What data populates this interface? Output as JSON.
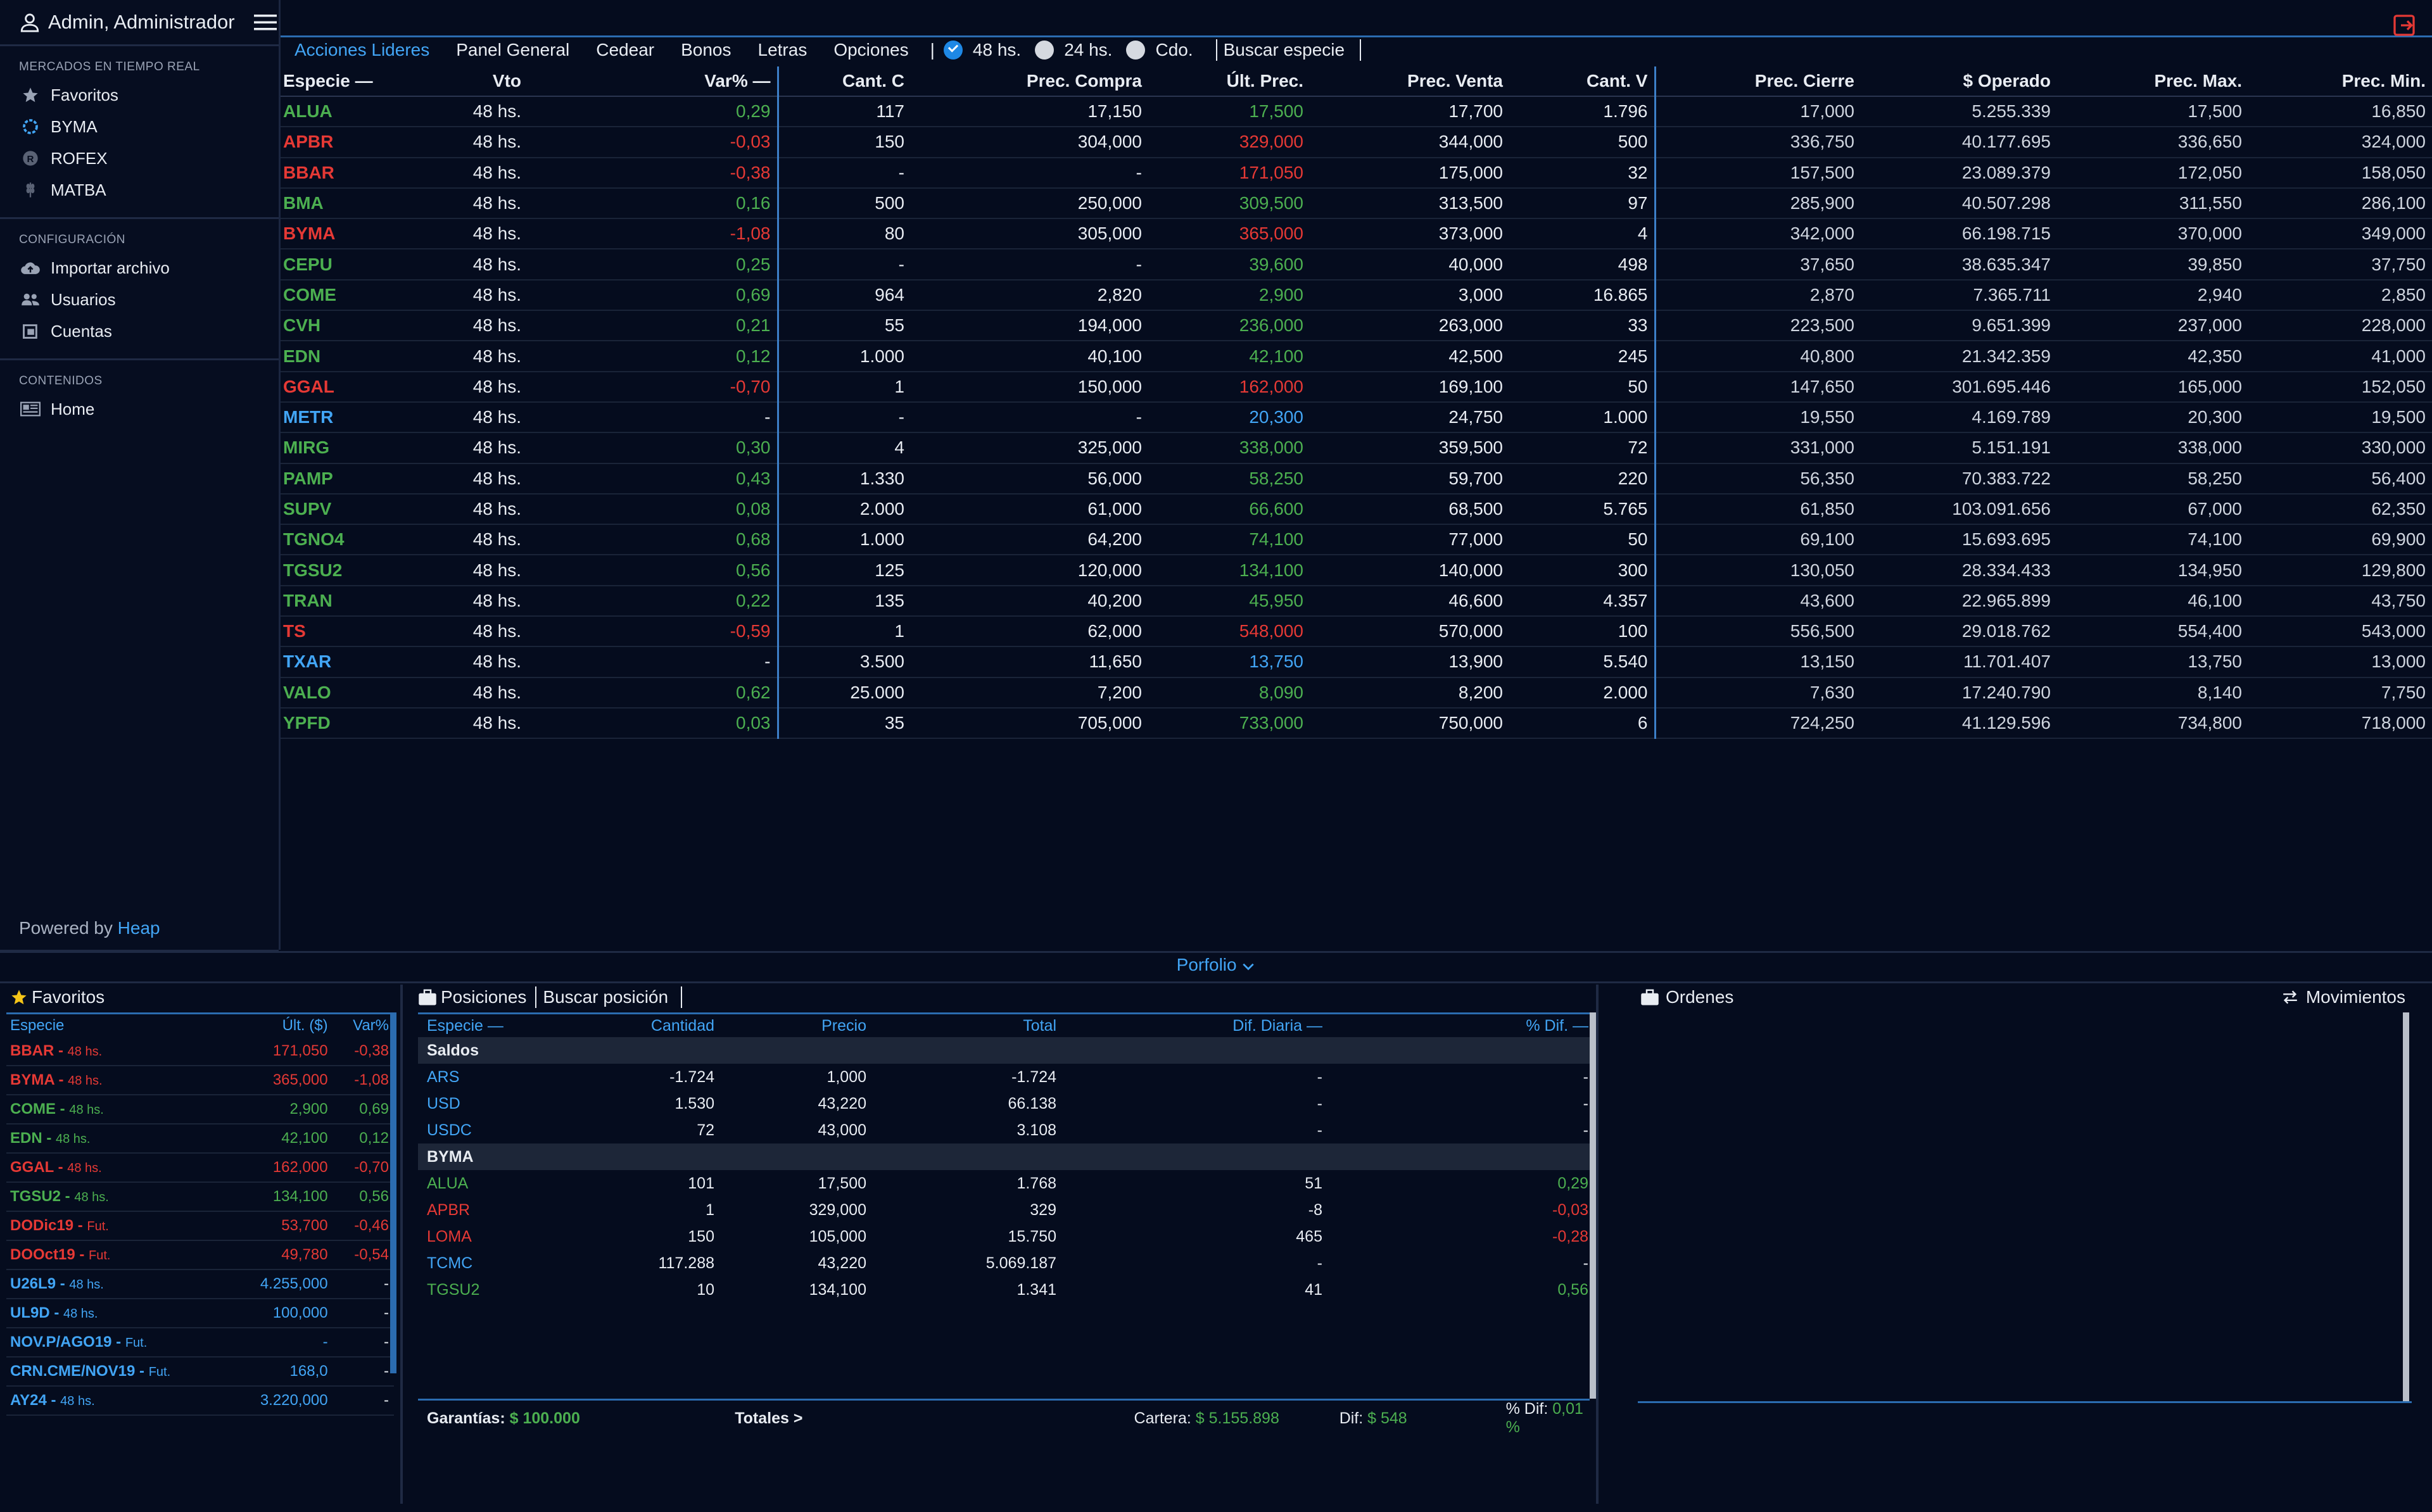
{
  "header": {
    "user": "Admin, Administrador"
  },
  "sidebar": {
    "sections": [
      {
        "title": "MERCADOS EN TIEMPO REAL",
        "items": [
          {
            "label": "Favoritos",
            "icon": "star-icon"
          },
          {
            "label": "BYMA",
            "icon": "byma-icon"
          },
          {
            "label": "ROFEX",
            "icon": "rofex-icon"
          },
          {
            "label": "MATBA",
            "icon": "wheat-icon"
          }
        ]
      },
      {
        "title": "CONFIGURACIÓN",
        "items": [
          {
            "label": "Importar archivo",
            "icon": "cloud-upload-icon"
          },
          {
            "label": "Usuarios",
            "icon": "users-icon"
          },
          {
            "label": "Cuentas",
            "icon": "accounts-icon"
          }
        ]
      },
      {
        "title": "CONTENIDOS",
        "items": [
          {
            "label": "Home",
            "icon": "newspaper-icon"
          }
        ]
      }
    ],
    "powered_by": "Powered by",
    "powered_brand": "Heap"
  },
  "topbar": {
    "tabs": [
      "Acciones Lideres",
      "Panel General",
      "Cedear",
      "Bonos",
      "Letras",
      "Opciones"
    ],
    "active_tab": "Acciones Lideres",
    "separator": "|",
    "settlement_options": [
      {
        "label": "48 hs.",
        "checked": true
      },
      {
        "label": "24 hs.",
        "checked": false
      },
      {
        "label": "Cdo.",
        "checked": false
      }
    ],
    "search_placeholder": "Buscar especie"
  },
  "main_table": {
    "columns": [
      "Especie",
      "Vto",
      "Var%",
      "Cant. C",
      "Prec. Compra",
      "Últ. Prec.",
      "Prec. Venta",
      "Cant. V",
      "Prec. Cierre",
      "$ Operado",
      "Prec. Max.",
      "Prec. Min."
    ],
    "sort_marker": "—",
    "rows": [
      {
        "especie": "ALUA",
        "color": "g",
        "vto": "48 hs.",
        "var": "0,29",
        "cant_c": "117",
        "compra": "17,150",
        "ult": "17,500",
        "venta": "17,700",
        "cant_v": "1.796",
        "cierre": "17,000",
        "operado": "5.255.339",
        "max": "17,500",
        "min": "16,850"
      },
      {
        "especie": "APBR",
        "color": "r",
        "vto": "48 hs.",
        "var": "-0,03",
        "cant_c": "150",
        "compra": "304,000",
        "ult": "329,000",
        "venta": "344,000",
        "cant_v": "500",
        "cierre": "336,750",
        "operado": "40.177.695",
        "max": "336,650",
        "min": "324,000"
      },
      {
        "especie": "BBAR",
        "color": "r",
        "vto": "48 hs.",
        "var": "-0,38",
        "cant_c": "-",
        "compra": "-",
        "ult": "171,050",
        "venta": "175,000",
        "cant_v": "32",
        "cierre": "157,500",
        "operado": "23.089.379",
        "max": "172,050",
        "min": "158,050"
      },
      {
        "especie": "BMA",
        "color": "g",
        "vto": "48 hs.",
        "var": "0,16",
        "cant_c": "500",
        "compra": "250,000",
        "ult": "309,500",
        "venta": "313,500",
        "cant_v": "97",
        "cierre": "285,900",
        "operado": "40.507.298",
        "max": "311,550",
        "min": "286,100"
      },
      {
        "especie": "BYMA",
        "color": "r",
        "vto": "48 hs.",
        "var": "-1,08",
        "cant_c": "80",
        "compra": "305,000",
        "ult": "365,000",
        "venta": "373,000",
        "cant_v": "4",
        "cierre": "342,000",
        "operado": "66.198.715",
        "max": "370,000",
        "min": "349,000"
      },
      {
        "especie": "CEPU",
        "color": "g",
        "vto": "48 hs.",
        "var": "0,25",
        "cant_c": "-",
        "compra": "-",
        "ult": "39,600",
        "venta": "40,000",
        "cant_v": "498",
        "cierre": "37,650",
        "operado": "38.635.347",
        "max": "39,850",
        "min": "37,750"
      },
      {
        "especie": "COME",
        "color": "g",
        "vto": "48 hs.",
        "var": "0,69",
        "cant_c": "964",
        "compra": "2,820",
        "ult": "2,900",
        "venta": "3,000",
        "cant_v": "16.865",
        "cierre": "2,870",
        "operado": "7.365.711",
        "max": "2,940",
        "min": "2,850"
      },
      {
        "especie": "CVH",
        "color": "g",
        "vto": "48 hs.",
        "var": "0,21",
        "cant_c": "55",
        "compra": "194,000",
        "ult": "236,000",
        "venta": "263,000",
        "cant_v": "33",
        "cierre": "223,500",
        "operado": "9.651.399",
        "max": "237,000",
        "min": "228,000"
      },
      {
        "especie": "EDN",
        "color": "g",
        "vto": "48 hs.",
        "var": "0,12",
        "cant_c": "1.000",
        "compra": "40,100",
        "ult": "42,100",
        "venta": "42,500",
        "cant_v": "245",
        "cierre": "40,800",
        "operado": "21.342.359",
        "max": "42,350",
        "min": "41,000"
      },
      {
        "especie": "GGAL",
        "color": "r",
        "vto": "48 hs.",
        "var": "-0,70",
        "cant_c": "1",
        "compra": "150,000",
        "ult": "162,000",
        "venta": "169,100",
        "cant_v": "50",
        "cierre": "147,650",
        "operado": "301.695.446",
        "max": "165,000",
        "min": "152,050"
      },
      {
        "especie": "METR",
        "color": "b",
        "vto": "48 hs.",
        "var": "-",
        "cant_c": "-",
        "compra": "-",
        "ult": "20,300",
        "venta": "24,750",
        "cant_v": "1.000",
        "cierre": "19,550",
        "operado": "4.169.789",
        "max": "20,300",
        "min": "19,500"
      },
      {
        "especie": "MIRG",
        "color": "g",
        "vto": "48 hs.",
        "var": "0,30",
        "cant_c": "4",
        "compra": "325,000",
        "ult": "338,000",
        "venta": "359,500",
        "cant_v": "72",
        "cierre": "331,000",
        "operado": "5.151.191",
        "max": "338,000",
        "min": "330,000"
      },
      {
        "especie": "PAMP",
        "color": "g",
        "vto": "48 hs.",
        "var": "0,43",
        "cant_c": "1.330",
        "compra": "56,000",
        "ult": "58,250",
        "venta": "59,700",
        "cant_v": "220",
        "cierre": "56,350",
        "operado": "70.383.722",
        "max": "58,250",
        "min": "56,400"
      },
      {
        "especie": "SUPV",
        "color": "g",
        "vto": "48 hs.",
        "var": "0,08",
        "cant_c": "2.000",
        "compra": "61,000",
        "ult": "66,600",
        "venta": "68,500",
        "cant_v": "5.765",
        "cierre": "61,850",
        "operado": "103.091.656",
        "max": "67,000",
        "min": "62,350"
      },
      {
        "especie": "TGNO4",
        "color": "g",
        "vto": "48 hs.",
        "var": "0,68",
        "cant_c": "1.000",
        "compra": "64,200",
        "ult": "74,100",
        "venta": "77,000",
        "cant_v": "50",
        "cierre": "69,100",
        "operado": "15.693.695",
        "max": "74,100",
        "min": "69,900"
      },
      {
        "especie": "TGSU2",
        "color": "g",
        "vto": "48 hs.",
        "var": "0,56",
        "cant_c": "125",
        "compra": "120,000",
        "ult": "134,100",
        "venta": "140,000",
        "cant_v": "300",
        "cierre": "130,050",
        "operado": "28.334.433",
        "max": "134,950",
        "min": "129,800"
      },
      {
        "especie": "TRAN",
        "color": "g",
        "vto": "48 hs.",
        "var": "0,22",
        "cant_c": "135",
        "compra": "40,200",
        "ult": "45,950",
        "venta": "46,600",
        "cant_v": "4.357",
        "cierre": "43,600",
        "operado": "22.965.899",
        "max": "46,100",
        "min": "43,750"
      },
      {
        "especie": "TS",
        "color": "r",
        "vto": "48 hs.",
        "var": "-0,59",
        "cant_c": "1",
        "compra": "62,000",
        "ult": "548,000",
        "venta": "570,000",
        "cant_v": "100",
        "cierre": "556,500",
        "operado": "29.018.762",
        "max": "554,400",
        "min": "543,000"
      },
      {
        "especie": "TXAR",
        "color": "b",
        "vto": "48 hs.",
        "var": "-",
        "cant_c": "3.500",
        "compra": "11,650",
        "ult": "13,750",
        "venta": "13,900",
        "cant_v": "5.540",
        "cierre": "13,150",
        "operado": "11.701.407",
        "max": "13,750",
        "min": "13,000"
      },
      {
        "especie": "VALO",
        "color": "g",
        "vto": "48 hs.",
        "var": "0,62",
        "cant_c": "25.000",
        "compra": "7,200",
        "ult": "8,090",
        "venta": "8,200",
        "cant_v": "2.000",
        "cierre": "7,630",
        "operado": "17.240.790",
        "max": "8,140",
        "min": "7,750"
      },
      {
        "especie": "YPFD",
        "color": "g",
        "vto": "48 hs.",
        "var": "0,03",
        "cant_c": "35",
        "compra": "705,000",
        "ult": "733,000",
        "venta": "750,000",
        "cant_v": "6",
        "cierre": "724,250",
        "operado": "41.129.596",
        "max": "734,800",
        "min": "718,000"
      }
    ]
  },
  "portfolio_toggle": "Porfolio",
  "favorites": {
    "title": "Favoritos",
    "columns": [
      "Especie",
      "Últ. ($)",
      "Var%"
    ],
    "rows": [
      {
        "especie": "BBAR",
        "vto": "48 hs.",
        "ult": "171,050",
        "var": "-0,38",
        "color": "r"
      },
      {
        "especie": "BYMA",
        "vto": "48 hs.",
        "ult": "365,000",
        "var": "-1,08",
        "color": "r"
      },
      {
        "especie": "COME",
        "vto": "48 hs.",
        "ult": "2,900",
        "var": "0,69",
        "color": "g"
      },
      {
        "especie": "EDN",
        "vto": "48 hs.",
        "ult": "42,100",
        "var": "0,12",
        "color": "g"
      },
      {
        "especie": "GGAL",
        "vto": "48 hs.",
        "ult": "162,000",
        "var": "-0,70",
        "color": "r"
      },
      {
        "especie": "TGSU2",
        "vto": "48 hs.",
        "ult": "134,100",
        "var": "0,56",
        "color": "g"
      },
      {
        "especie": "DODic19",
        "vto": "Fut.",
        "ult": "53,700",
        "var": "-0,46",
        "color": "r"
      },
      {
        "especie": "DOOct19",
        "vto": "Fut.",
        "ult": "49,780",
        "var": "-0,54",
        "color": "r"
      },
      {
        "especie": "U26L9",
        "vto": "48 hs.",
        "ult": "4.255,000",
        "var": "-",
        "color": "b"
      },
      {
        "especie": "UL9D",
        "vto": "48 hs.",
        "ult": "100,000",
        "var": "-",
        "color": "b"
      },
      {
        "especie": "NOV.P/AGO19",
        "vto": "Fut.",
        "ult": "-",
        "var": "-",
        "color": "b"
      },
      {
        "especie": "CRN.CME/NOV19",
        "vto": "Fut.",
        "ult": "168,0",
        "var": "-",
        "color": "b"
      },
      {
        "especie": "AY24",
        "vto": "48 hs.",
        "ult": "3.220,000",
        "var": "-",
        "color": "b"
      }
    ]
  },
  "positions": {
    "title": "Posiciones",
    "search_placeholder": "Buscar posición",
    "columns": [
      "Especie",
      "Cantidad",
      "Precio",
      "Total",
      "Dif. Diaria",
      "% Dif."
    ],
    "groups": [
      {
        "name": "Saldos",
        "rows": [
          {
            "especie": "ARS",
            "cantidad": "-1.724",
            "precio": "1,000",
            "total": "-1.724",
            "dif": "-",
            "pct": "-",
            "color": "b",
            "dif_color": "w"
          },
          {
            "especie": "USD",
            "cantidad": "1.530",
            "precio": "43,220",
            "total": "66.138",
            "dif": "-",
            "pct": "-",
            "color": "b",
            "dif_color": "w"
          },
          {
            "especie": "USDC",
            "cantidad": "72",
            "precio": "43,000",
            "total": "3.108",
            "dif": "-",
            "pct": "-",
            "color": "b",
            "dif_color": "w"
          }
        ]
      },
      {
        "name": "BYMA",
        "rows": [
          {
            "especie": "ALUA",
            "cantidad": "101",
            "precio": "17,500",
            "total": "1.768",
            "dif": "51",
            "pct": "0,29",
            "color": "g",
            "dif_color": "g"
          },
          {
            "especie": "APBR",
            "cantidad": "1",
            "precio": "329,000",
            "total": "329",
            "dif": "-8",
            "pct": "-0,03",
            "color": "r",
            "dif_color": "r"
          },
          {
            "especie": "LOMA",
            "cantidad": "150",
            "precio": "105,000",
            "total": "15.750",
            "dif": "465",
            "pct": "-0,28",
            "color": "r",
            "dif_color": "r"
          },
          {
            "especie": "TCMC",
            "cantidad": "117.288",
            "precio": "43,220",
            "total": "5.069.187",
            "dif": "-",
            "pct": "-",
            "color": "b",
            "dif_color": "w"
          },
          {
            "especie": "TGSU2",
            "cantidad": "10",
            "precio": "134,100",
            "total": "1.341",
            "dif": "41",
            "pct": "0,56",
            "color": "g",
            "dif_color": "g"
          }
        ]
      }
    ],
    "footer": {
      "garantias_label": "Garantías:",
      "garantias_value": "$ 100.000",
      "totales_label": "Totales >",
      "cartera_label": "Cartera:",
      "cartera_value": "$ 5.155.898",
      "dif_label": "Dif:",
      "dif_value": "$ 548",
      "pct_label": "% Dif:",
      "pct_value": "0,01 %"
    }
  },
  "orders": {
    "title": "Ordenes",
    "movements_label": "Movimientos"
  }
}
